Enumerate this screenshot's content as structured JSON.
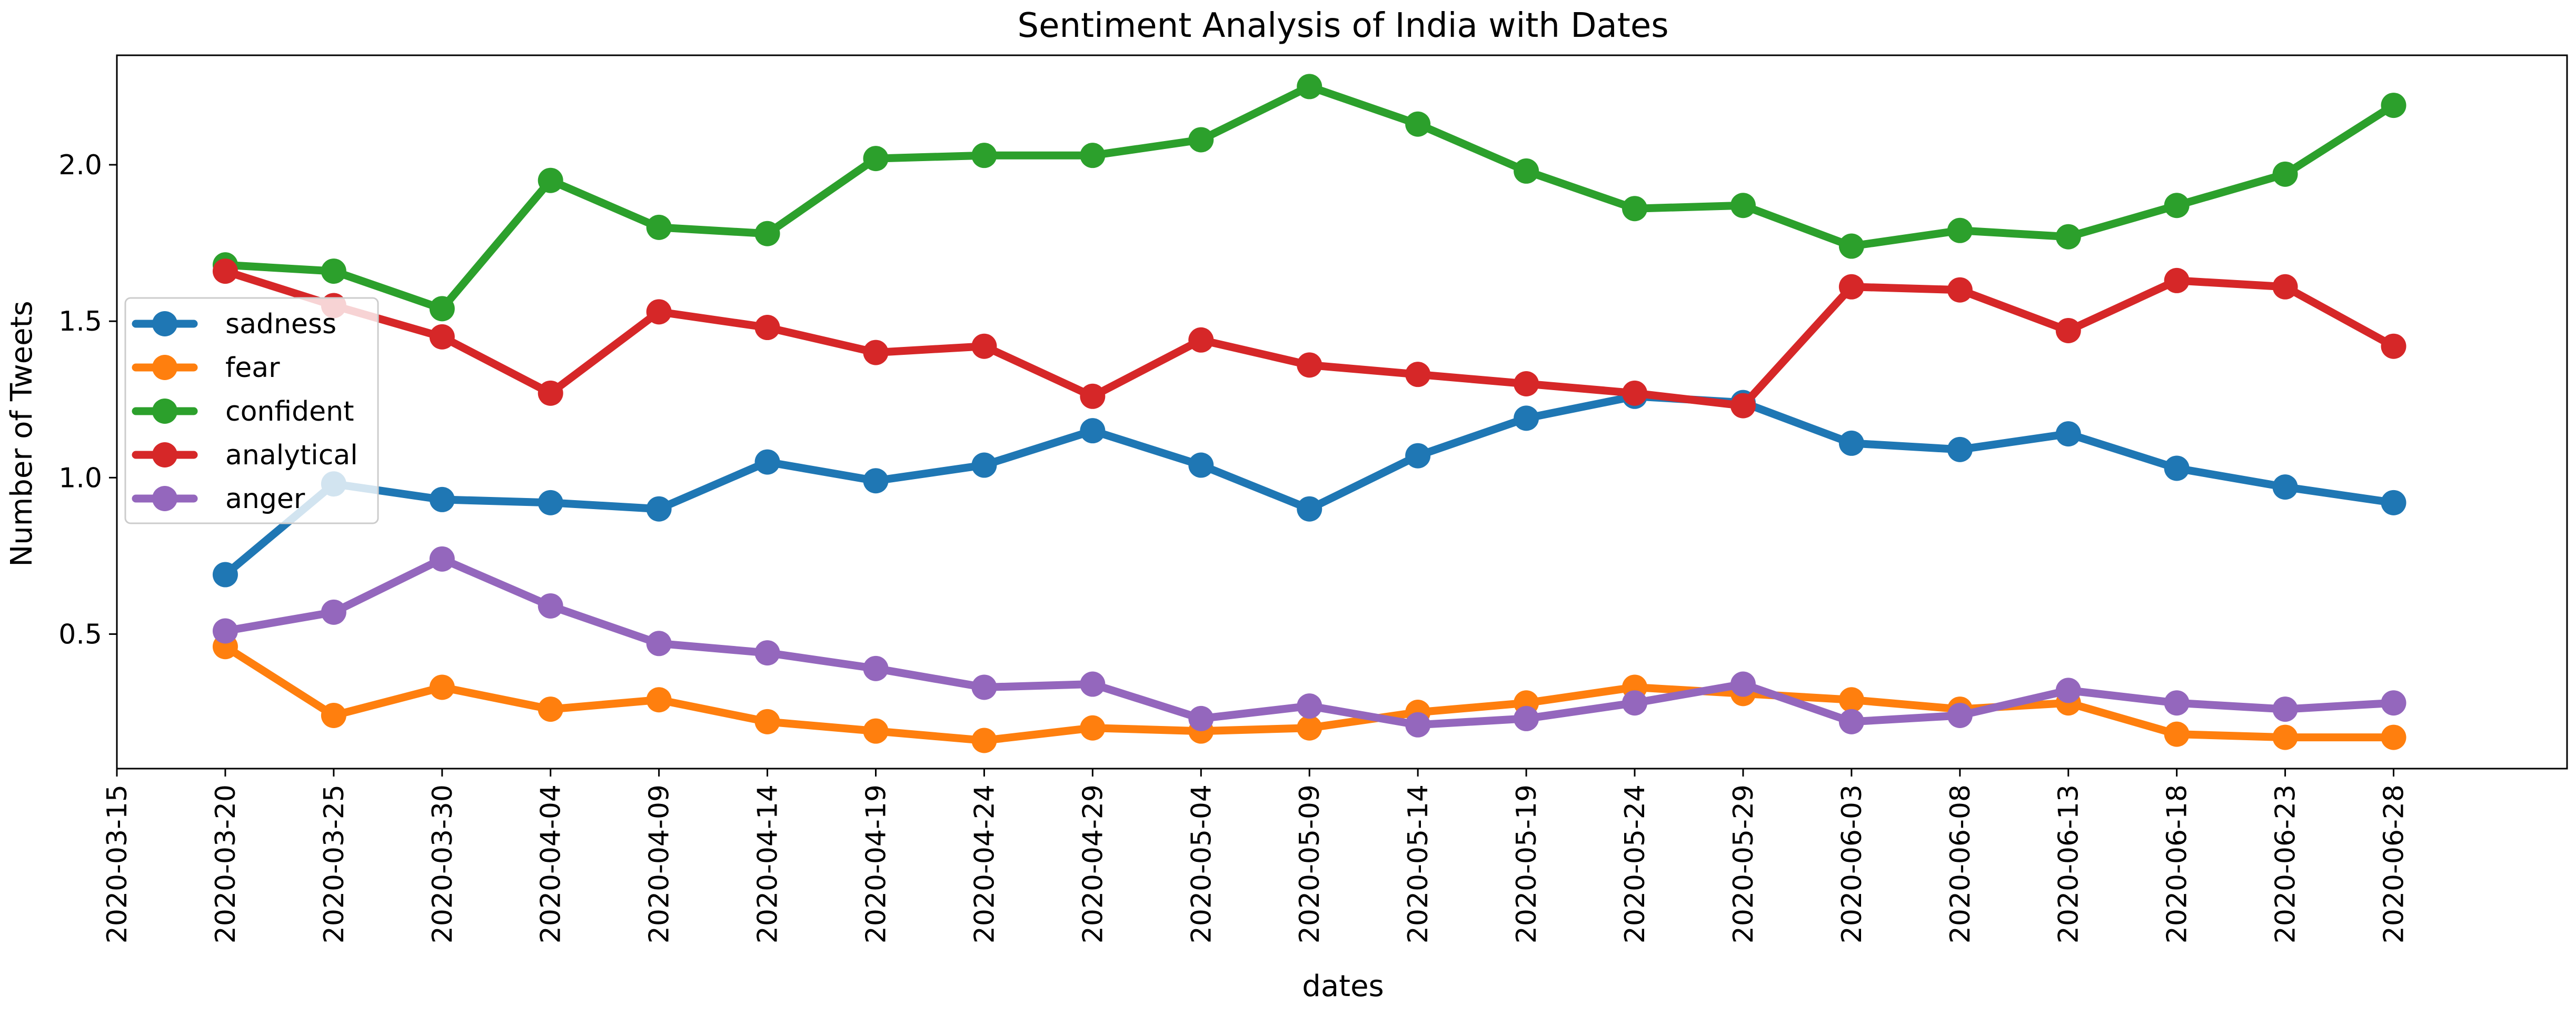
{
  "chart_data": {
    "type": "line",
    "title": "Sentiment Analysis of India with Dates",
    "xlabel": "dates",
    "ylabel": "Number of Tweets",
    "x_ticks": [
      "2020-03-15",
      "2020-03-20",
      "2020-03-25",
      "2020-03-30",
      "2020-04-04",
      "2020-04-09",
      "2020-04-14",
      "2020-04-19",
      "2020-04-24",
      "2020-04-29",
      "2020-05-04",
      "2020-05-09",
      "2020-05-14",
      "2020-05-19",
      "2020-05-24",
      "2020-05-29",
      "2020-06-03",
      "2020-06-08",
      "2020-06-13",
      "2020-06-18",
      "2020-06-23",
      "2020-06-28"
    ],
    "y_ticks": [
      0.5,
      1.0,
      1.5,
      2.0
    ],
    "y_tick_labels": [
      "0.5",
      "1.0",
      "1.5",
      "2.0"
    ],
    "xlim": [
      "2020-03-15",
      "2020-07-06"
    ],
    "ylim": [
      0.07,
      2.35
    ],
    "grid": false,
    "legend_position": "center-left",
    "x": [
      "2020-03-20",
      "2020-03-25",
      "2020-03-30",
      "2020-04-04",
      "2020-04-09",
      "2020-04-14",
      "2020-04-19",
      "2020-04-24",
      "2020-04-29",
      "2020-05-04",
      "2020-05-09",
      "2020-05-14",
      "2020-05-19",
      "2020-05-24",
      "2020-05-29",
      "2020-06-03",
      "2020-06-08",
      "2020-06-13",
      "2020-06-18",
      "2020-06-23",
      "2020-06-28"
    ],
    "series": [
      {
        "name": "sadness",
        "color": "#1f77b4",
        "values": [
          0.69,
          0.98,
          0.93,
          0.92,
          0.9,
          1.05,
          0.99,
          1.04,
          1.15,
          1.04,
          0.9,
          1.07,
          1.19,
          1.26,
          1.24,
          1.11,
          1.09,
          1.14,
          1.03,
          0.97,
          0.92
        ]
      },
      {
        "name": "fear",
        "color": "#ff7f0e",
        "values": [
          0.46,
          0.24,
          0.33,
          0.26,
          0.29,
          0.22,
          0.19,
          0.16,
          0.2,
          0.19,
          0.2,
          0.25,
          0.28,
          0.33,
          0.31,
          0.29,
          0.26,
          0.28,
          0.18,
          0.17,
          0.17
        ]
      },
      {
        "name": "confident",
        "color": "#2ca02c",
        "values": [
          1.68,
          1.66,
          1.54,
          1.95,
          1.8,
          1.78,
          2.02,
          2.03,
          2.03,
          2.08,
          2.25,
          2.13,
          1.98,
          1.86,
          1.87,
          1.74,
          1.79,
          1.77,
          1.87,
          1.97,
          2.19
        ]
      },
      {
        "name": "analytical",
        "color": "#d62728",
        "values": [
          1.66,
          1.55,
          1.45,
          1.27,
          1.53,
          1.48,
          1.4,
          1.42,
          1.26,
          1.44,
          1.36,
          1.33,
          1.3,
          1.27,
          1.23,
          1.61,
          1.6,
          1.47,
          1.63,
          1.61,
          1.42
        ]
      },
      {
        "name": "anger",
        "color": "#9467bd",
        "values": [
          0.51,
          0.57,
          0.74,
          0.59,
          0.47,
          0.44,
          0.39,
          0.33,
          0.34,
          0.23,
          0.27,
          0.21,
          0.23,
          0.28,
          0.34,
          0.22,
          0.24,
          0.32,
          0.28,
          0.26,
          0.28
        ]
      }
    ]
  }
}
